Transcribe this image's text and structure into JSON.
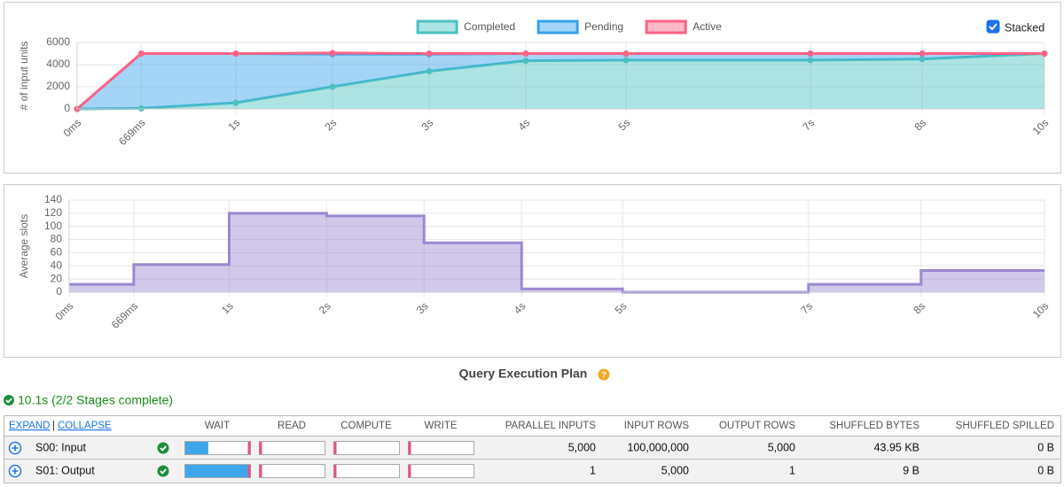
{
  "chart_data": [
    {
      "type": "area",
      "stacked": true,
      "stacked_label": "Stacked",
      "legend": "top",
      "grid": true,
      "y_label": "# of input units",
      "x": [
        0,
        669,
        1657,
        2666,
        3675,
        4685,
        5731,
        7656,
        8822,
        10100
      ],
      "xlim": [
        0,
        10100
      ],
      "xticks": [
        {
          "value": 0,
          "label": "0ms"
        },
        {
          "value": 669,
          "label": "669ms"
        },
        {
          "value": 1657,
          "label": "1s"
        },
        {
          "value": 2666,
          "label": "2s"
        },
        {
          "value": 3675,
          "label": "3s"
        },
        {
          "value": 4685,
          "label": "4s"
        },
        {
          "value": 5731,
          "label": "5s"
        },
        {
          "value": 7656,
          "label": "7s"
        },
        {
          "value": 8822,
          "label": "8s"
        },
        {
          "value": 10100,
          "label": "10s"
        }
      ],
      "ylim": [
        0,
        6000
      ],
      "yticks": [
        0,
        2000,
        4000,
        6000
      ],
      "series": [
        {
          "name": "Completed",
          "color": "#4bc0c0",
          "values": [
            0,
            50,
            550,
            2000,
            3400,
            4350,
            4400,
            4400,
            4500,
            5000
          ]
        },
        {
          "name": "Pending",
          "color": "#36a2eb",
          "values": [
            0,
            4950,
            4450,
            2950,
            1550,
            650,
            600,
            600,
            500,
            0
          ]
        },
        {
          "name": "Active",
          "color": "#ff6384",
          "values": [
            0,
            0,
            0,
            100,
            50,
            0,
            0,
            0,
            0,
            0
          ]
        }
      ]
    },
    {
      "type": "area",
      "step": "after",
      "grid": true,
      "y_label": "Average slots",
      "x": [
        0,
        669,
        1657,
        2666,
        3675,
        4685,
        5731,
        7656,
        8822,
        10100
      ],
      "xlim": [
        0,
        10100
      ],
      "xticks": [
        {
          "value": 0,
          "label": "0ms"
        },
        {
          "value": 669,
          "label": "669ms"
        },
        {
          "value": 1657,
          "label": "1s"
        },
        {
          "value": 2666,
          "label": "2s"
        },
        {
          "value": 3675,
          "label": "3s"
        },
        {
          "value": 4685,
          "label": "4s"
        },
        {
          "value": 5731,
          "label": "5s"
        },
        {
          "value": 7656,
          "label": "7s"
        },
        {
          "value": 8822,
          "label": "8s"
        },
        {
          "value": 10100,
          "label": "10s"
        }
      ],
      "ylim": [
        0,
        140
      ],
      "yticks": [
        0,
        20,
        40,
        60,
        80,
        100,
        120,
        140
      ],
      "color": "#9a88d0",
      "values": [
        12,
        42,
        120,
        116,
        75,
        5,
        0,
        12,
        33,
        33
      ]
    }
  ],
  "plan": {
    "title": "Query Execution Plan",
    "status": "10.1s (2/2 Stages complete)",
    "expand": "EXPAND",
    "separator": "|",
    "collapse": "COLLAPSE",
    "columns": [
      "WAIT",
      "READ",
      "COMPUTE",
      "WRITE",
      "PARALLEL INPUTS",
      "INPUT ROWS",
      "OUTPUT ROWS",
      "SHUFFLED BYTES",
      "SHUFFLED SPILLED"
    ],
    "rows": [
      {
        "name": "S00: Input",
        "timing": [
          [
            35,
            98
          ],
          [
            2,
            2
          ],
          [
            0,
            2
          ],
          [
            0,
            2
          ]
        ],
        "cells": [
          "5,000",
          "100,000,000",
          "5,000",
          "43.95 KB",
          "0 B"
        ]
      },
      {
        "name": "S01: Output",
        "timing": [
          [
            98,
            98
          ],
          [
            0,
            2
          ],
          [
            0,
            2
          ],
          [
            0,
            2
          ]
        ],
        "cells": [
          "1",
          "5,000",
          "1",
          "9 B",
          "0 B"
        ]
      }
    ]
  }
}
